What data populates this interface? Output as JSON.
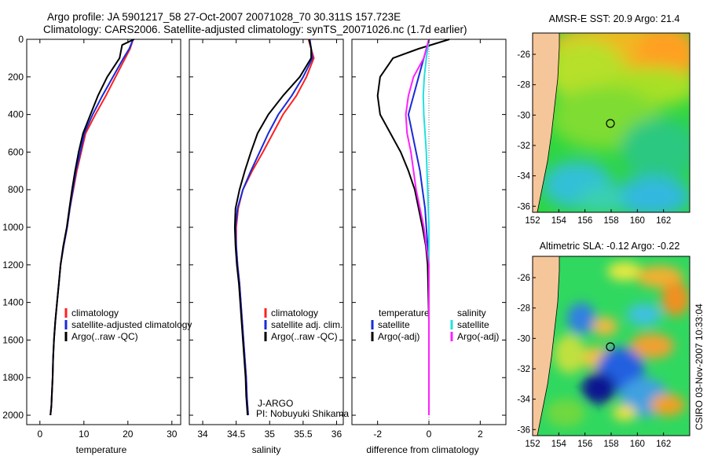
{
  "header": {
    "line1": "Argo profile: JA 5901217_58 27-Oct-2007 20071028_70 30.311S 157.723E",
    "line2": "Climatology: CARS2006. Satellite-adjusted climatology: synTS_20071026.nc (1.7d earlier)"
  },
  "footer_credit": "CSIRO 03-Nov-2007 10:33:04",
  "colors": {
    "climatology": "#ff2020",
    "satellite": "#1a2ad8",
    "argo": "#000000",
    "sat_salinity": "#22e0e0",
    "argo_salinity": "#ff20ff",
    "land": "#f5c69a"
  },
  "chart_data": [
    {
      "type": "line",
      "id": "temperature",
      "xlabel": "temperature",
      "ylabel": "",
      "xlim": [
        -3,
        32
      ],
      "ylim": [
        2050,
        0
      ],
      "xticks": [
        0,
        10,
        20,
        30
      ],
      "yticks": [
        0,
        200,
        400,
        600,
        800,
        1000,
        1200,
        1400,
        1600,
        1800,
        2000
      ],
      "legend": {
        "placement": "lower-center",
        "entries": [
          "climatology",
          "satellite-adjusted climatology",
          "Argo(..raw -QC)"
        ]
      },
      "series": [
        {
          "name": "climatology",
          "color": "red",
          "x": [
            21.2,
            20.5,
            19.4,
            17.2,
            15.0,
            12.6,
            10.4,
            9.4,
            8.4,
            7.6,
            6.8,
            6.2,
            5.4,
            4.7,
            4.3,
            3.9,
            3.5,
            3.2,
            3.0,
            2.9,
            2.7,
            2.6,
            2.4,
            2.4
          ],
          "y": [
            0,
            50,
            100,
            200,
            300,
            400,
            500,
            600,
            700,
            800,
            900,
            1000,
            1100,
            1200,
            1300,
            1400,
            1500,
            1600,
            1700,
            1800,
            1900,
            1950,
            2000,
            2000
          ]
        },
        {
          "name": "satellite-adjusted climatology",
          "color": "blue",
          "x": [
            21.2,
            20.3,
            19.0,
            16.6,
            14.2,
            12.0,
            10.1,
            9.2,
            8.2,
            7.5,
            6.8,
            6.2,
            5.4,
            4.7,
            4.3,
            3.9,
            3.5,
            3.2,
            3.0,
            2.9,
            2.7,
            2.6,
            2.4,
            2.4
          ],
          "y": [
            0,
            50,
            100,
            200,
            300,
            400,
            500,
            600,
            700,
            800,
            900,
            1000,
            1100,
            1200,
            1300,
            1400,
            1500,
            1600,
            1700,
            1800,
            1900,
            1950,
            2000,
            2000
          ]
        },
        {
          "name": "Argo(..raw -QC)",
          "color": "black",
          "x": [
            21.4,
            18.7,
            18.1,
            15.3,
            13.2,
            11.5,
            9.8,
            8.8,
            8.0,
            7.3,
            6.7,
            6.1,
            5.3,
            4.7,
            4.3,
            3.9,
            3.5,
            3.2,
            3.0,
            2.9,
            2.7,
            2.6,
            2.4,
            2.4
          ],
          "y": [
            0,
            30,
            100,
            200,
            300,
            400,
            500,
            600,
            700,
            800,
            900,
            1000,
            1100,
            1200,
            1300,
            1400,
            1500,
            1600,
            1700,
            1800,
            1900,
            1950,
            2000,
            2000
          ]
        }
      ]
    },
    {
      "type": "line",
      "id": "salinity",
      "xlabel": "salinity",
      "ylabel": "",
      "xlim": [
        33.8,
        36.1
      ],
      "ylim": [
        2050,
        0
      ],
      "xticks": [
        34,
        34.5,
        35,
        35.5,
        36
      ],
      "xtick_labels": [
        "34",
        "34.5",
        "35",
        "35.5",
        "36"
      ],
      "legend": {
        "placement": "lower-center",
        "entries": [
          "climatology",
          "satellite adj. clim.",
          "Argo(..raw -QC)"
        ]
      },
      "annotation": {
        "line1": "J-ARGO",
        "line2": "PI: Nobuyuki Shikama"
      },
      "series": [
        {
          "name": "climatology",
          "color": "red",
          "x": [
            35.58,
            35.62,
            35.66,
            35.55,
            35.4,
            35.2,
            35.05,
            34.9,
            34.74,
            34.6,
            34.53,
            34.5,
            34.5,
            34.52,
            34.55,
            34.57,
            34.59,
            34.61,
            34.63,
            34.65,
            34.66,
            34.67,
            34.68
          ],
          "y": [
            0,
            50,
            100,
            200,
            300,
            400,
            500,
            600,
            700,
            800,
            900,
            1000,
            1100,
            1200,
            1300,
            1400,
            1500,
            1600,
            1700,
            1800,
            1900,
            1950,
            2000
          ]
        },
        {
          "name": "satellite adj. clim.",
          "color": "blue",
          "x": [
            35.6,
            35.62,
            35.64,
            35.5,
            35.33,
            35.13,
            34.98,
            34.85,
            34.72,
            34.6,
            34.52,
            34.49,
            34.5,
            34.52,
            34.55,
            34.57,
            34.59,
            34.61,
            34.63,
            34.65,
            34.66,
            34.67,
            34.68
          ],
          "y": [
            0,
            50,
            100,
            200,
            300,
            400,
            500,
            600,
            700,
            800,
            900,
            1000,
            1100,
            1200,
            1300,
            1400,
            1500,
            1600,
            1700,
            1800,
            1900,
            1950,
            2000
          ]
        },
        {
          "name": "Argo(..raw -QC)",
          "color": "black",
          "x": [
            35.59,
            35.62,
            35.62,
            35.45,
            35.2,
            34.98,
            34.82,
            34.72,
            34.63,
            34.55,
            34.49,
            34.48,
            34.49,
            34.51,
            34.54,
            34.56,
            34.58,
            34.6,
            34.62,
            34.64,
            34.65,
            34.66,
            34.67
          ],
          "y": [
            0,
            50,
            100,
            200,
            300,
            400,
            500,
            600,
            700,
            800,
            900,
            1000,
            1100,
            1200,
            1300,
            1400,
            1500,
            1600,
            1700,
            1800,
            1900,
            1950,
            2000
          ]
        }
      ]
    },
    {
      "type": "line",
      "id": "difference",
      "xlabel": "difference from climatology",
      "ylabel": "",
      "xlim": [
        -3,
        3
      ],
      "ylim": [
        2050,
        0
      ],
      "xticks": [
        -2,
        0,
        2
      ],
      "legend": {
        "placement": "lower-center",
        "entries": [
          "temperature",
          "satellite",
          "Argo(-adj)",
          "salinity",
          "satellite",
          "Argo(-adj)"
        ]
      },
      "series": [
        {
          "name": "temperature satellite",
          "color": "blue",
          "x": [
            0,
            -0.2,
            -0.4,
            -0.6,
            -0.8,
            -0.65,
            -0.5,
            -0.35,
            -0.25,
            -0.15,
            -0.1,
            -0.05,
            -0.02,
            0,
            0,
            0
          ],
          "y": [
            0,
            100,
            200,
            300,
            400,
            500,
            600,
            700,
            800,
            900,
            1000,
            1100,
            1200,
            1300,
            1600,
            2000
          ]
        },
        {
          "name": "temperature Argo(-adj)",
          "color": "black",
          "x": [
            0.8,
            -0.4,
            -1.4,
            -1.9,
            -2.0,
            -1.9,
            -1.5,
            -1.1,
            -0.8,
            -0.55,
            -0.4,
            -0.25,
            -0.12,
            -0.05,
            0,
            0
          ],
          "y": [
            0,
            50,
            100,
            200,
            300,
            400,
            500,
            600,
            700,
            800,
            900,
            1000,
            1100,
            1200,
            1500,
            2000
          ]
        },
        {
          "name": "salinity satellite",
          "color": "cyan",
          "x": [
            0,
            -0.1,
            -0.18,
            -0.22,
            -0.2,
            -0.15,
            -0.1,
            -0.05,
            0,
            0
          ],
          "y": [
            0,
            100,
            200,
            300,
            400,
            500,
            600,
            800,
            1000,
            2000
          ]
        },
        {
          "name": "salinity Argo(-adj)",
          "color": "magenta",
          "x": [
            0,
            -0.2,
            -0.6,
            -0.8,
            -0.9,
            -0.85,
            -0.7,
            -0.6,
            -0.5,
            -0.35,
            -0.2,
            -0.1,
            0,
            0
          ],
          "y": [
            0,
            100,
            200,
            300,
            400,
            500,
            600,
            700,
            800,
            900,
            1000,
            1100,
            1200,
            2000
          ]
        }
      ]
    },
    {
      "type": "heatmap",
      "id": "amsre-sst",
      "title": "AMSR-E SST: 20.9 Argo: 21.4",
      "xlim": [
        152,
        164
      ],
      "ylim": [
        -36.4,
        -24.6
      ],
      "xticks": [
        152,
        154,
        156,
        158,
        160,
        162
      ],
      "yticks": [
        -26,
        -28,
        -30,
        -32,
        -34,
        -36
      ],
      "marker": {
        "lon": 157.723,
        "lat": -30.311
      }
    },
    {
      "type": "heatmap",
      "id": "altimetric-sla",
      "title": "Altimetric SLA: -0.12 Argo: -0.22",
      "xlim": [
        152,
        164
      ],
      "ylim": [
        -36.4,
        -24.6
      ],
      "xticks": [
        152,
        154,
        156,
        158,
        160,
        162
      ],
      "yticks": [
        -26,
        -28,
        -30,
        -32,
        -34,
        -36
      ],
      "marker": {
        "lon": 157.723,
        "lat": -30.311
      }
    }
  ]
}
